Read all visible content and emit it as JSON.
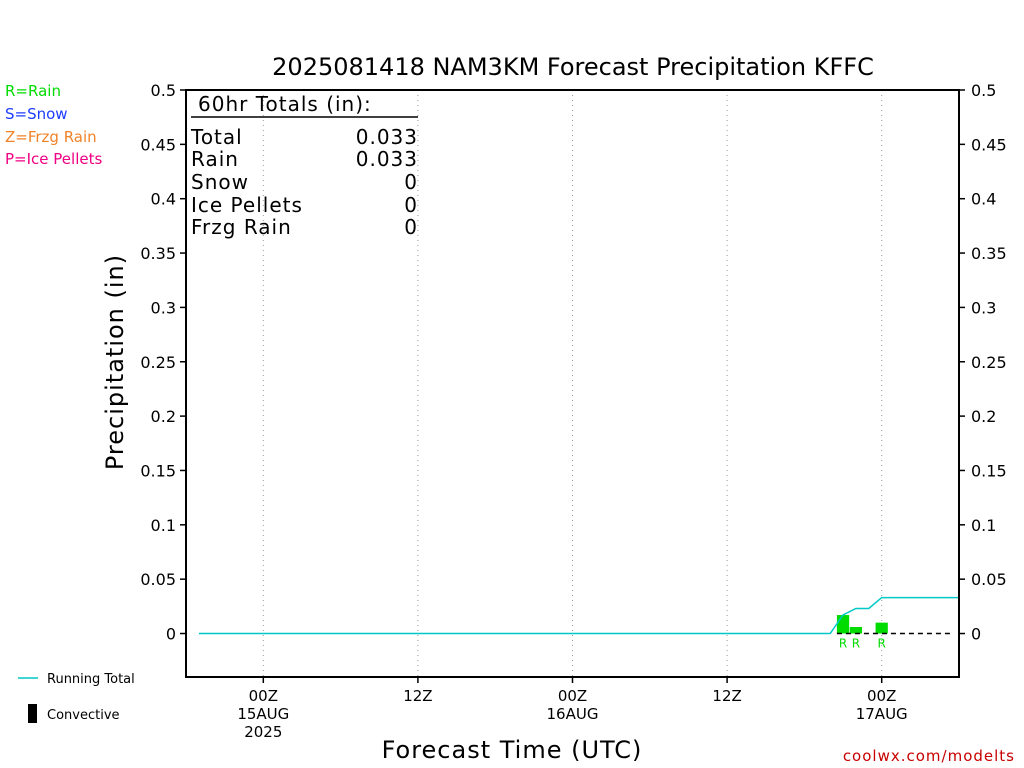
{
  "chart_data": {
    "type": "bar",
    "title": "2025081418 NAM3KM Forecast Precipitation KFFC",
    "xlabel": "Forecast Time (UTC)",
    "ylabel": "Precipitation (in)",
    "ylim": [
      -0.04,
      0.5
    ],
    "yticks": [
      0,
      0.05,
      0.1,
      0.15,
      0.2,
      0.25,
      0.3,
      0.35,
      0.4,
      0.45,
      0.5
    ],
    "ytick_labels": [
      "0",
      "0.05",
      "0.1",
      "0.15",
      "0.2",
      "0.25",
      "0.3",
      "0.35",
      "0.4",
      "0.45",
      "0.5"
    ],
    "xlim_hours": [
      18,
      78
    ],
    "x_gridlines_hours": [
      24,
      36,
      48,
      60,
      72
    ],
    "x_ticks": [
      {
        "hour": 24,
        "lines": [
          "00Z",
          "15AUG",
          "2025"
        ]
      },
      {
        "hour": 36,
        "lines": [
          "12Z"
        ]
      },
      {
        "hour": 48,
        "lines": [
          "00Z",
          "16AUG"
        ]
      },
      {
        "hour": 60,
        "lines": [
          "12Z"
        ]
      },
      {
        "hour": 72,
        "lines": [
          "00Z",
          "17AUG"
        ]
      }
    ],
    "grid": true,
    "precip_bars": [
      {
        "hour": 69,
        "value": 0.017,
        "type": "R"
      },
      {
        "hour": 70,
        "value": 0.006,
        "type": "R"
      },
      {
        "hour": 72,
        "value": 0.01,
        "type": "R"
      }
    ],
    "running_total": {
      "name": "Running Total",
      "x": [
        19,
        68,
        69,
        70,
        71,
        72,
        78
      ],
      "y": [
        0,
        0,
        0.017,
        0.023,
        0.023,
        0.033,
        0.033
      ]
    },
    "colors": {
      "rain": "#00dc00",
      "snow": "#1e3cff",
      "frzg_rain": "#f08228",
      "ice_pellets": "#f00082",
      "running_total": "#00c8c8",
      "credit": "#c80000"
    }
  },
  "totals_box": {
    "heading": "60hr Totals (in):",
    "rows": [
      {
        "label": "Total",
        "value": "0.033"
      },
      {
        "label": "Rain",
        "value": "0.033"
      },
      {
        "label": "Snow",
        "value": "0"
      },
      {
        "label": "Ice Pellets",
        "value": "0"
      },
      {
        "label": "Frzg Rain",
        "value": "0"
      }
    ]
  },
  "type_legend": [
    {
      "label": "R=Rain",
      "color": "#00dc00"
    },
    {
      "label": "S=Snow",
      "color": "#1e3cff"
    },
    {
      "label": "Z=Frzg Rain",
      "color": "#f08228"
    },
    {
      "label": "P=Ice Pellets",
      "color": "#f00082"
    }
  ],
  "bottom_legend": {
    "running_total": "Running Total",
    "convective": "Convective"
  },
  "credit": "coolwx.com/modelts"
}
